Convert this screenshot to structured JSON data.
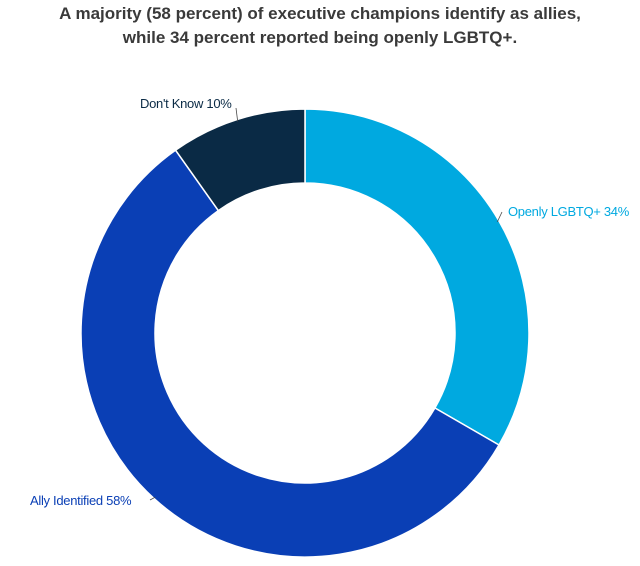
{
  "chart_data": {
    "type": "pie",
    "variant": "donut",
    "title_lines": [
      "A majority (58 percent) of executive champions identify as allies,",
      "while 34 percent reported being openly LGBTQ+."
    ],
    "slices": [
      {
        "name": "Openly LGBTQ+",
        "value": 34,
        "label": "Openly LGBTQ+ 34%",
        "color": "#00A9E0",
        "label_color": "#00A9E0"
      },
      {
        "name": "Ally Identified",
        "value": 58,
        "label": "Ally Identified 58%",
        "color": "#0A3FB5",
        "label_color": "#0A3FB5"
      },
      {
        "name": "Don't Know",
        "value": 10,
        "label": "Don't Know 10%",
        "color": "#0A2A45",
        "label_color": "#0A2A45"
      }
    ],
    "start_angle_deg": 0,
    "direction": "clockwise",
    "legend": "none"
  }
}
